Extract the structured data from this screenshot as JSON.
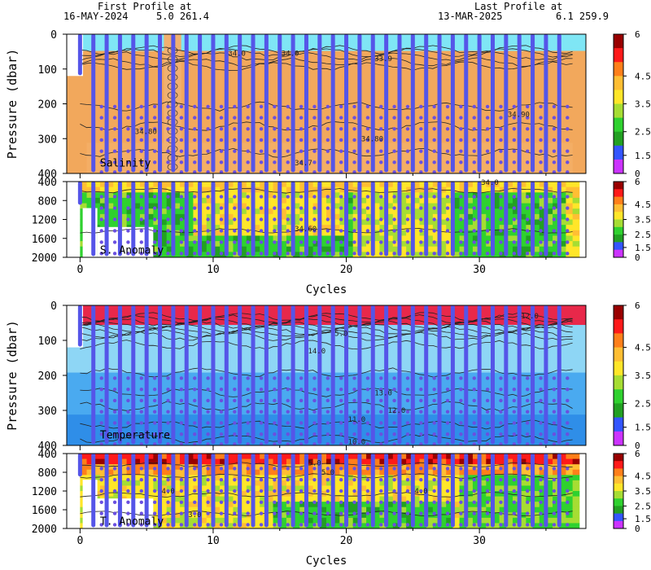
{
  "header": {
    "first_title": "First Profile at",
    "first_date": "16-MAY-2024",
    "first_pos": "5.0 261.4",
    "last_title": "Last Profile at",
    "last_date": "13-MAR-2025",
    "last_pos": "6.1 259.9"
  },
  "colors": {
    "profile_line": "#5555e8",
    "profile_dot": "#6a4fe0",
    "contour": "#222222",
    "salinity_fill": "#f2a85c",
    "salinity_surface": "#7fe6f5",
    "temperature_fill": "#4aaaf0",
    "temperature_deep": "#2f8ee8",
    "temperature_surface": "#e8284a",
    "colorbar": [
      "#cc33ff",
      "#3355ff",
      "#22a022",
      "#2fd12f",
      "#a6dd33",
      "#ffe629",
      "#ffbe33",
      "#ff7f1a",
      "#ff1a1a",
      "#990000"
    ]
  },
  "chart_data": [
    {
      "type": "heatmap",
      "panel": "Salinity",
      "ylabel": "Pressure (dbar)",
      "xlabel": "",
      "xlim": [
        -1,
        38
      ],
      "ylim": [
        400,
        0
      ],
      "y_ticks": [
        "0",
        "100",
        "200",
        "300",
        "400"
      ],
      "x_ticks": [
        0,
        10,
        20,
        30
      ],
      "contour_labels": [
        {
          "text": "34.0",
          "x": 11,
          "p": 55
        },
        {
          "text": "34.0",
          "x": 15,
          "p": 55
        },
        {
          "text": "33.9",
          "x": 22,
          "p": 70
        },
        {
          "text": "34.90",
          "x": 32,
          "p": 230
        },
        {
          "text": "34.80",
          "x": 4,
          "p": 280
        },
        {
          "text": "34.80",
          "x": 21,
          "p": 300
        },
        {
          "text": "34.7",
          "x": 16,
          "p": 370
        }
      ],
      "colorbar_labels": [
        "6",
        "4.5",
        "3.5",
        "2.5",
        "1.5",
        "0"
      ]
    },
    {
      "type": "heatmap",
      "panel": "S. Anomaly",
      "xlabel": "Cycles",
      "xlim": [
        -1,
        38
      ],
      "ylim": [
        2000,
        400
      ],
      "y_ticks": [
        "400",
        "800",
        "1200",
        "1600",
        "2000"
      ],
      "x_ticks": [
        "0",
        "10",
        "20",
        "30"
      ],
      "contour_labels": [
        {
          "text": "34.60",
          "x": 16,
          "p": 1400
        },
        {
          "text": "34.0",
          "x": 30,
          "p": 420
        }
      ],
      "colorbar_labels": [
        "6",
        "4.5",
        "3.5",
        "2.5",
        "1.5",
        "0"
      ]
    },
    {
      "type": "heatmap",
      "panel": "Temperature",
      "ylabel": "Pressure (dbar)",
      "xlabel": "",
      "xlim": [
        -1,
        38
      ],
      "ylim": [
        400,
        0
      ],
      "y_ticks": [
        "0",
        "100",
        "200",
        "300",
        "400"
      ],
      "x_ticks": [
        0,
        10,
        20,
        30
      ],
      "contour_labels": [
        {
          "text": "12.0",
          "x": 33,
          "p": 30
        },
        {
          "text": "5.0",
          "x": 19,
          "p": 80
        },
        {
          "text": "14.0",
          "x": 17,
          "p": 130
        },
        {
          "text": "13.0",
          "x": 22,
          "p": 250
        },
        {
          "text": "12.0",
          "x": 23,
          "p": 300
        },
        {
          "text": "11.0",
          "x": 20,
          "p": 325
        },
        {
          "text": "10.0",
          "x": 20,
          "p": 390
        }
      ],
      "colorbar_labels": [
        "6",
        "4.5",
        "3.5",
        "2.5",
        "1.5",
        "0"
      ]
    },
    {
      "type": "heatmap",
      "panel": "T. Anomaly",
      "xlabel": "Cycles",
      "xlim": [
        -1,
        38
      ],
      "ylim": [
        2000,
        400
      ],
      "y_ticks": [
        "400",
        "800",
        "1200",
        "1600",
        "2000"
      ],
      "x_ticks": [
        "0",
        "10",
        "20",
        "30"
      ],
      "contour_labels": [
        {
          "text": "5.0",
          "x": 17,
          "p": 600
        },
        {
          "text": "5.0",
          "x": 18,
          "p": 800
        },
        {
          "text": "4.0",
          "x": 6,
          "p": 1200
        },
        {
          "text": "4.0",
          "x": 25,
          "p": 1200
        },
        {
          "text": "3.0",
          "x": 8,
          "p": 1700
        }
      ],
      "colorbar_labels": [
        "6",
        "4.5",
        "3.5",
        "2.5",
        "1.5",
        "0"
      ]
    }
  ]
}
